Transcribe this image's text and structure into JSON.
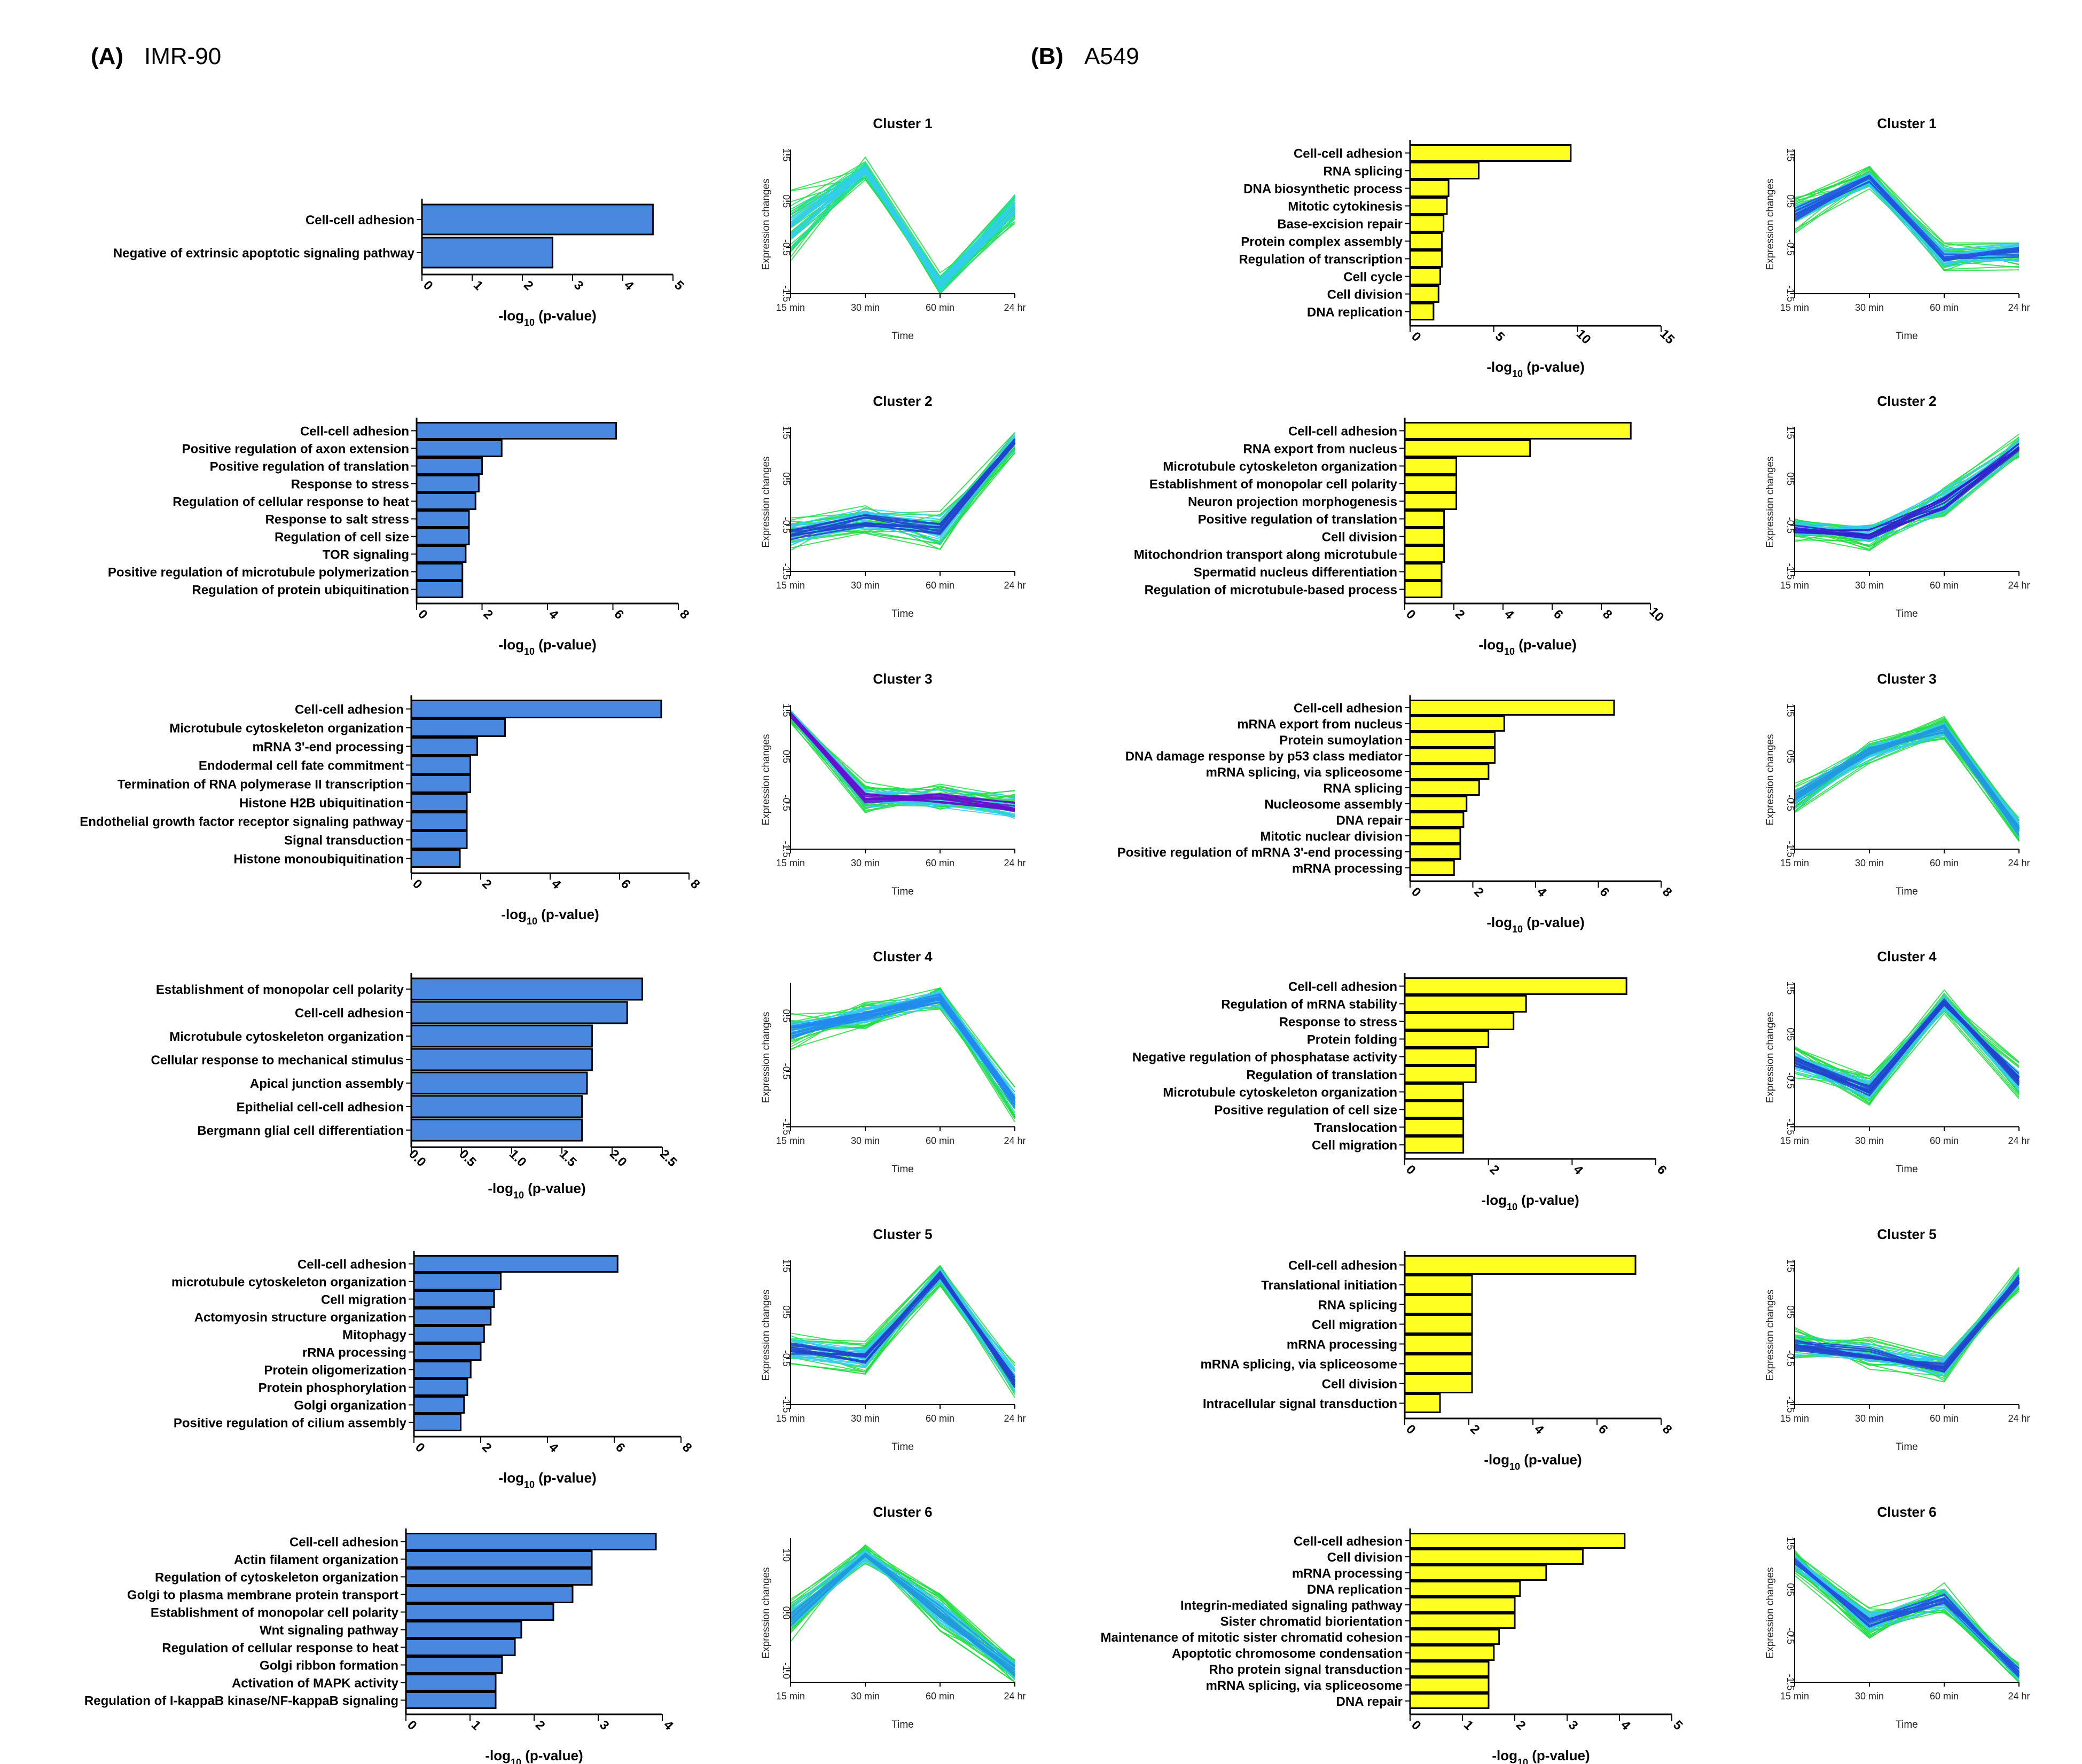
{
  "figure": {
    "panels": [
      {
        "letter": "(A)",
        "name": "IMR-90"
      },
      {
        "letter": "(B)",
        "name": "A549"
      }
    ],
    "bar_color": "#4a88e0",
    "bar_color_b": "#ffff22",
    "cluster_time_labels": [
      "15 min",
      "30 min",
      "60 min",
      "24 hr"
    ],
    "cluster_xlabel": "Time",
    "cluster_ylabel": "Expression changes"
  },
  "chart_data": [
    {
      "type": "bar",
      "panel": "A",
      "cluster": 1,
      "title": "",
      "xlabel": "-log10 (p-value)",
      "xlim": [
        0,
        5
      ],
      "ticks": [
        "0",
        "1",
        "2",
        "3",
        "4",
        "5"
      ],
      "categories": [
        "Cell-cell adhesion",
        "Negative of extrinsic apoptotic signaling pathway"
      ],
      "values": [
        4.6,
        2.6
      ]
    },
    {
      "type": "line",
      "panel": "A",
      "cluster": 1,
      "title": "Cluster 1",
      "xlabel": "Time",
      "ylabel": "Expression changes",
      "ylim": [
        -1.5,
        1.5
      ],
      "ticks": [
        "-1.5",
        "-0.5",
        "0.5",
        "1.5"
      ],
      "x": [
        "15 min",
        "30 min",
        "60 min",
        "24 hr"
      ],
      "mean": [
        -0.1,
        1.2,
        -1.3,
        0.4
      ],
      "spread": [
        0.9,
        0.3,
        0.3,
        0.5
      ],
      "palette": [
        "#22dd44",
        "#22e0a0",
        "#33ccee"
      ]
    },
    {
      "type": "bar",
      "panel": "A",
      "cluster": 2,
      "title": "",
      "xlabel": "-log10 (p-value)",
      "xlim": [
        0,
        8
      ],
      "ticks": [
        "0",
        "2",
        "4",
        "6",
        "8"
      ],
      "categories": [
        "Cell-cell adhesion",
        "Positive regulation of axon extension",
        "Positive regulation of translation",
        "Response to stress",
        "Regulation of cellular response to heat",
        "Response to salt stress",
        "Regulation of cell size",
        "TOR signaling",
        "Positive regulation of microtubule polymerization",
        "Regulation of protein ubiquitination"
      ],
      "values": [
        6.1,
        2.6,
        2.0,
        1.9,
        1.8,
        1.6,
        1.6,
        1.5,
        1.4,
        1.4
      ]
    },
    {
      "type": "line",
      "panel": "A",
      "cluster": 2,
      "title": "Cluster 2",
      "xlabel": "Time",
      "ylabel": "Expression changes",
      "ylim": [
        -1.5,
        1.5
      ],
      "ticks": [
        "-1.5",
        "-0.5",
        "0.5",
        "1.5"
      ],
      "x": [
        "15 min",
        "30 min",
        "60 min",
        "24 hr"
      ],
      "mean": [
        -0.7,
        -0.4,
        -0.6,
        1.3
      ],
      "spread": [
        0.4,
        0.4,
        0.5,
        0.3
      ],
      "palette": [
        "#22dd44",
        "#33ccee",
        "#2244cc"
      ]
    },
    {
      "type": "bar",
      "panel": "A",
      "cluster": 3,
      "title": "",
      "xlabel": "-log10 (p-value)",
      "xlim": [
        0,
        8
      ],
      "ticks": [
        "0",
        "2",
        "4",
        "6",
        "8"
      ],
      "categories": [
        "Cell-cell adhesion",
        "Microtubule cytoskeleton organization",
        "mRNA 3'-end processing",
        "Endodermal cell fate commitment",
        "Termination of RNA polymerase II transcription",
        "Histone H2B ubiquitination",
        "Endothelial growth factor receptor signaling pathway",
        "Signal transduction",
        "Histone monoubiquitination"
      ],
      "values": [
        7.2,
        2.7,
        1.9,
        1.7,
        1.7,
        1.6,
        1.6,
        1.6,
        1.4
      ]
    },
    {
      "type": "line",
      "panel": "A",
      "cluster": 3,
      "title": "Cluster 3",
      "xlabel": "Time",
      "ylabel": "Expression changes",
      "ylim": [
        -1.5,
        1.5
      ],
      "ticks": [
        "-1.5",
        "-0.5",
        "0.5",
        "1.5"
      ],
      "x": [
        "15 min",
        "30 min",
        "60 min",
        "24 hr"
      ],
      "mean": [
        1.4,
        -0.4,
        -0.4,
        -0.6
      ],
      "spread": [
        0.2,
        0.4,
        0.4,
        0.4
      ],
      "palette": [
        "#22dd44",
        "#33ccee",
        "#6611cc"
      ]
    },
    {
      "type": "bar",
      "panel": "A",
      "cluster": 4,
      "title": "",
      "xlabel": "-log10 (p-value)",
      "xlim": [
        0,
        2.5
      ],
      "ticks": [
        "0.0",
        "0.5",
        "1.0",
        "1.5",
        "2.0",
        "2.5"
      ],
      "categories": [
        "Establishment of monopolar cell polarity",
        "Cell-cell adhesion",
        "Microtubule cytoskeleton organization",
        "Cellular response to mechanical stimulus",
        "Apical junction assembly",
        "Epithelial cell-cell adhesion",
        "Bergmann glial cell differentiation"
      ],
      "values": [
        2.3,
        2.15,
        1.8,
        1.8,
        1.75,
        1.7,
        1.7
      ]
    },
    {
      "type": "line",
      "panel": "A",
      "cluster": 4,
      "title": "Cluster 4",
      "xlabel": "Time",
      "ylabel": "Expression changes",
      "ylim": [
        -1.5,
        1.0
      ],
      "ticks": [
        "-1.5",
        "-0.5",
        "0.5"
      ],
      "x": [
        "15 min",
        "30 min",
        "60 min",
        "24 hr"
      ],
      "mean": [
        0.2,
        0.5,
        0.8,
        -1.1
      ],
      "spread": [
        0.4,
        0.3,
        0.3,
        0.4
      ],
      "palette": [
        "#22dd44",
        "#33ccee",
        "#2288ee"
      ]
    },
    {
      "type": "bar",
      "panel": "A",
      "cluster": 5,
      "title": "",
      "xlabel": "-log10 (p-value)",
      "xlim": [
        0,
        8
      ],
      "ticks": [
        "0",
        "2",
        "4",
        "6",
        "8"
      ],
      "categories": [
        "Cell-cell adhesion",
        "microtubule cytoskeleton organization",
        "Cell migration",
        "Actomyosin structure organization",
        "Mitophagy",
        "rRNA processing",
        "Protein oligomerization",
        "Protein phosphorylation",
        "Golgi organization",
        "Positive regulation of cilium assembly"
      ],
      "values": [
        6.1,
        2.6,
        2.4,
        2.3,
        2.1,
        2.0,
        1.7,
        1.6,
        1.5,
        1.4
      ]
    },
    {
      "type": "line",
      "panel": "A",
      "cluster": 5,
      "title": "Cluster 5",
      "xlabel": "Time",
      "ylabel": "Expression changes",
      "ylim": [
        -1.5,
        1.5
      ],
      "ticks": [
        "-1.5",
        "-0.5",
        "0.5",
        "1.5"
      ],
      "x": [
        "15 min",
        "30 min",
        "60 min",
        "24 hr"
      ],
      "mean": [
        -0.3,
        -0.5,
        1.3,
        -1.0
      ],
      "spread": [
        0.4,
        0.4,
        0.3,
        0.5
      ],
      "palette": [
        "#22dd44",
        "#33ccee",
        "#2244cc"
      ]
    },
    {
      "type": "bar",
      "panel": "A",
      "cluster": 6,
      "title": "",
      "xlabel": "-log10 (p-value)",
      "xlim": [
        0,
        4
      ],
      "ticks": [
        "0",
        "1",
        "2",
        "3",
        "4"
      ],
      "categories": [
        "Cell-cell adhesion",
        "Actin filament organization",
        "Regulation of cytoskeleton organization",
        "Golgi to plasma membrane protein transport",
        "Establishment of monopolar cell polarity",
        "Wnt signaling pathway",
        "Regulation of cellular response to heat",
        "Golgi ribbon formation",
        "Activation of MAPK activity",
        "Regulation of I-kappaB kinase/NF-kappaB signaling"
      ],
      "values": [
        3.9,
        2.9,
        2.9,
        2.6,
        2.3,
        1.8,
        1.7,
        1.5,
        1.4,
        1.4
      ]
    },
    {
      "type": "line",
      "panel": "A",
      "cluster": 6,
      "title": "Cluster 6",
      "xlabel": "Time",
      "ylabel": "Expression changes",
      "ylim": [
        -1.2,
        1.2
      ],
      "ticks": [
        "-1.0",
        "0.0",
        "1.0"
      ],
      "x": [
        "15 min",
        "30 min",
        "60 min",
        "24 hr"
      ],
      "mean": [
        -0.1,
        1.0,
        0.0,
        -1.0
      ],
      "spread": [
        0.4,
        0.2,
        0.4,
        0.3
      ],
      "palette": [
        "#22dd44",
        "#33ccee",
        "#2299dd"
      ]
    },
    {
      "type": "bar",
      "panel": "B",
      "cluster": 1,
      "title": "",
      "xlabel": "-log10 (p-value)",
      "xlim": [
        0,
        15
      ],
      "ticks": [
        "0",
        "5",
        "10",
        "15"
      ],
      "categories": [
        "Cell-cell adhesion",
        "RNA splicing",
        "DNA biosynthetic process",
        "Mitotic cytokinesis",
        "Base-excision repair",
        "Protein complex assembly",
        "Regulation of transcription",
        "Cell cycle",
        "Cell division",
        "DNA replication"
      ],
      "values": [
        9.6,
        4.1,
        2.3,
        2.2,
        2.0,
        1.9,
        1.9,
        1.8,
        1.7,
        1.4
      ]
    },
    {
      "type": "line",
      "panel": "B",
      "cluster": 1,
      "title": "Cluster 1",
      "xlabel": "Time",
      "ylabel": "Expression changes",
      "ylim": [
        -1.5,
        1.5
      ],
      "ticks": [
        "-1.5",
        "-0.5",
        "0.5",
        "1.5"
      ],
      "x": [
        "15 min",
        "30 min",
        "60 min",
        "24 hr"
      ],
      "mean": [
        0.2,
        1.0,
        -0.7,
        -0.6
      ],
      "spread": [
        0.5,
        0.3,
        0.4,
        0.4
      ],
      "palette": [
        "#22dd44",
        "#33ccee",
        "#2255dd"
      ]
    },
    {
      "type": "bar",
      "panel": "B",
      "cluster": 2,
      "title": "",
      "xlabel": "-log10 (p-value)",
      "xlim": [
        0,
        10
      ],
      "ticks": [
        "0",
        "2",
        "4",
        "6",
        "8",
        "10"
      ],
      "categories": [
        "Cell-cell adhesion",
        "RNA export from nucleus",
        "Microtubule cytoskeleton organization",
        "Establishment of monopolar cell polarity",
        "Neuron projection morphogenesis",
        "Positive regulation of translation",
        "Cell division",
        "Mitochondrion transport along microtubule",
        "Spermatid nucleus differentiation",
        "Regulation of microtubule-based process"
      ],
      "values": [
        9.2,
        5.1,
        2.1,
        2.1,
        2.1,
        1.6,
        1.6,
        1.6,
        1.5,
        1.5
      ]
    },
    {
      "type": "line",
      "panel": "B",
      "cluster": 2,
      "title": "Cluster 2",
      "xlabel": "Time",
      "ylabel": "Expression changes",
      "ylim": [
        -1.5,
        1.5
      ],
      "ticks": [
        "-1.5",
        "-0.5",
        "0.5",
        "1.5"
      ],
      "x": [
        "15 min",
        "30 min",
        "60 min",
        "24 hr"
      ],
      "mean": [
        -0.6,
        -0.7,
        0.0,
        1.2
      ],
      "spread": [
        0.3,
        0.4,
        0.5,
        0.3
      ],
      "palette": [
        "#22dd44",
        "#33ccee",
        "#3322cc"
      ]
    },
    {
      "type": "bar",
      "panel": "B",
      "cluster": 3,
      "title": "",
      "xlabel": "-log10 (p-value)",
      "xlim": [
        0,
        8
      ],
      "ticks": [
        "0",
        "2",
        "4",
        "6",
        "8"
      ],
      "categories": [
        "Cell-cell adhesion",
        "mRNA export from nucleus",
        "Protein sumoylation",
        "DNA damage response by p53 class mediator",
        "mRNA splicing, via spliceosome",
        "RNA splicing",
        "Nucleosome assembly",
        "DNA repair",
        "Mitotic nuclear division",
        "Positive regulation of mRNA 3'-end processing",
        "mRNA processing"
      ],
      "values": [
        6.5,
        3.0,
        2.7,
        2.7,
        2.5,
        2.2,
        1.8,
        1.7,
        1.6,
        1.6,
        1.4
      ]
    },
    {
      "type": "line",
      "panel": "B",
      "cluster": 3,
      "title": "Cluster 3",
      "xlabel": "Time",
      "ylabel": "Expression changes",
      "ylim": [
        -1.5,
        1.5
      ],
      "ticks": [
        "-1.5",
        "-0.5",
        "0.5",
        "1.5"
      ],
      "x": [
        "15 min",
        "30 min",
        "60 min",
        "24 hr"
      ],
      "mean": [
        -0.4,
        0.6,
        1.1,
        -1.1
      ],
      "spread": [
        0.4,
        0.3,
        0.3,
        0.4
      ],
      "palette": [
        "#22dd44",
        "#33ccee",
        "#2299dd"
      ]
    },
    {
      "type": "bar",
      "panel": "B",
      "cluster": 4,
      "title": "",
      "xlabel": "-log10 (p-value)",
      "xlim": [
        0,
        6
      ],
      "ticks": [
        "0",
        "2",
        "4",
        "6"
      ],
      "categories": [
        "Cell-cell adhesion",
        "Regulation of mRNA stability",
        "Response to stress",
        "Protein folding",
        "Negative regulation of phosphatase activity",
        "Regulation of translation",
        "Microtubule cytoskeleton organization",
        "Positive regulation of cell size",
        "Translocation",
        "Cell migration"
      ],
      "values": [
        5.3,
        2.9,
        2.6,
        2.0,
        1.7,
        1.7,
        1.4,
        1.4,
        1.4,
        1.4
      ]
    },
    {
      "type": "line",
      "panel": "B",
      "cluster": 4,
      "title": "Cluster 4",
      "xlabel": "Time",
      "ylabel": "Expression changes",
      "ylim": [
        -1.5,
        1.5
      ],
      "ticks": [
        "-1.5",
        "-0.5",
        "0.5",
        "1.5"
      ],
      "x": [
        "15 min",
        "30 min",
        "60 min",
        "24 hr"
      ],
      "mean": [
        -0.1,
        -0.7,
        1.2,
        -0.5
      ],
      "spread": [
        0.4,
        0.4,
        0.3,
        0.5
      ],
      "palette": [
        "#22dd44",
        "#33ccee",
        "#2244cc"
      ]
    },
    {
      "type": "bar",
      "panel": "B",
      "cluster": 5,
      "title": "",
      "xlabel": "-log10 (p-value)",
      "xlim": [
        0,
        8
      ],
      "ticks": [
        "0",
        "2",
        "4",
        "6",
        "8"
      ],
      "categories": [
        "Cell-cell adhesion",
        "Translational initiation",
        "RNA splicing",
        "Cell migration",
        "mRNA processing",
        "mRNA splicing, via spliceosome",
        "Cell division",
        "Intracellular signal transduction"
      ],
      "values": [
        7.2,
        2.1,
        2.1,
        2.1,
        2.1,
        2.1,
        2.1,
        1.1
      ]
    },
    {
      "type": "line",
      "panel": "B",
      "cluster": 5,
      "title": "Cluster 5",
      "xlabel": "Time",
      "ylabel": "Expression changes",
      "ylim": [
        -1.5,
        1.5
      ],
      "ticks": [
        "-1.5",
        "-0.5",
        "0.5",
        "1.5"
      ],
      "x": [
        "15 min",
        "30 min",
        "60 min",
        "24 hr"
      ],
      "mean": [
        -0.2,
        -0.4,
        -0.7,
        1.2
      ],
      "spread": [
        0.4,
        0.4,
        0.4,
        0.3
      ],
      "palette": [
        "#22dd44",
        "#33ccee",
        "#2244cc"
      ]
    },
    {
      "type": "bar",
      "panel": "B",
      "cluster": 6,
      "title": "",
      "xlabel": "-log10 (p-value)",
      "xlim": [
        0,
        5
      ],
      "ticks": [
        "0",
        "1",
        "2",
        "3",
        "4",
        "5"
      ],
      "categories": [
        "Cell-cell adhesion",
        "Cell division",
        "mRNA processing",
        "DNA replication",
        "Integrin-mediated signaling pathway",
        "Sister chromatid biorientation",
        "Maintenance of mitotic sister chromatid cohesion",
        "Apoptotic chromosome condensation",
        "Rho protein signal transduction",
        "mRNA splicing, via spliceosome",
        "DNA repair"
      ],
      "values": [
        4.1,
        3.3,
        2.6,
        2.1,
        2.0,
        2.0,
        1.7,
        1.6,
        1.5,
        1.5,
        1.5
      ]
    },
    {
      "type": "line",
      "panel": "B",
      "cluster": 6,
      "title": "Cluster 6",
      "xlabel": "Time",
      "ylabel": "Expression changes",
      "ylim": [
        -1.5,
        1.5
      ],
      "ticks": [
        "-1.5",
        "-0.5",
        "0.5",
        "1.5"
      ],
      "x": [
        "15 min",
        "30 min",
        "60 min",
        "24 hr"
      ],
      "mean": [
        1.1,
        -0.2,
        0.3,
        -1.3
      ],
      "spread": [
        0.3,
        0.4,
        0.4,
        0.3
      ],
      "palette": [
        "#22dd44",
        "#33ccee",
        "#2255dd"
      ]
    }
  ]
}
